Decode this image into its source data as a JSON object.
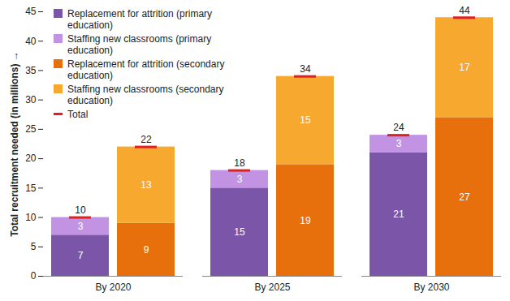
{
  "chart_data": {
    "type": "bar",
    "stacked": true,
    "data_labels": true,
    "grid": false,
    "legend": "top-left",
    "y_label": "Total recruitment needed (in millions)",
    "categories": [
      "By 2020",
      "By 2025",
      "By 2030"
    ],
    "ylim": [
      0,
      45
    ],
    "yticks": [
      0,
      5,
      10,
      15,
      20,
      25,
      30,
      35,
      40,
      45
    ],
    "stacks": [
      {
        "series": [
          {
            "name": "Replacement for attrition (primary education)",
            "color": "#7b55a8",
            "values": [
              7,
              15,
              21
            ]
          },
          {
            "name": "Staffing new classrooms (primary education)",
            "color": "#c393e3",
            "values": [
              3,
              3,
              3
            ]
          }
        ],
        "total": [
          10,
          18,
          24
        ]
      },
      {
        "series": [
          {
            "name": "Replacement for attrition (secondary education)",
            "color": "#e8700c",
            "values": [
              9,
              19,
              27
            ]
          },
          {
            "name": "Staffing new classrooms (secondary education)",
            "color": "#f7a82e",
            "values": [
              13,
              15,
              17
            ]
          }
        ],
        "total": [
          22,
          34,
          44
        ]
      }
    ],
    "total_series": {
      "name": "Total",
      "color": "#e0201f",
      "marker": "dash"
    }
  }
}
